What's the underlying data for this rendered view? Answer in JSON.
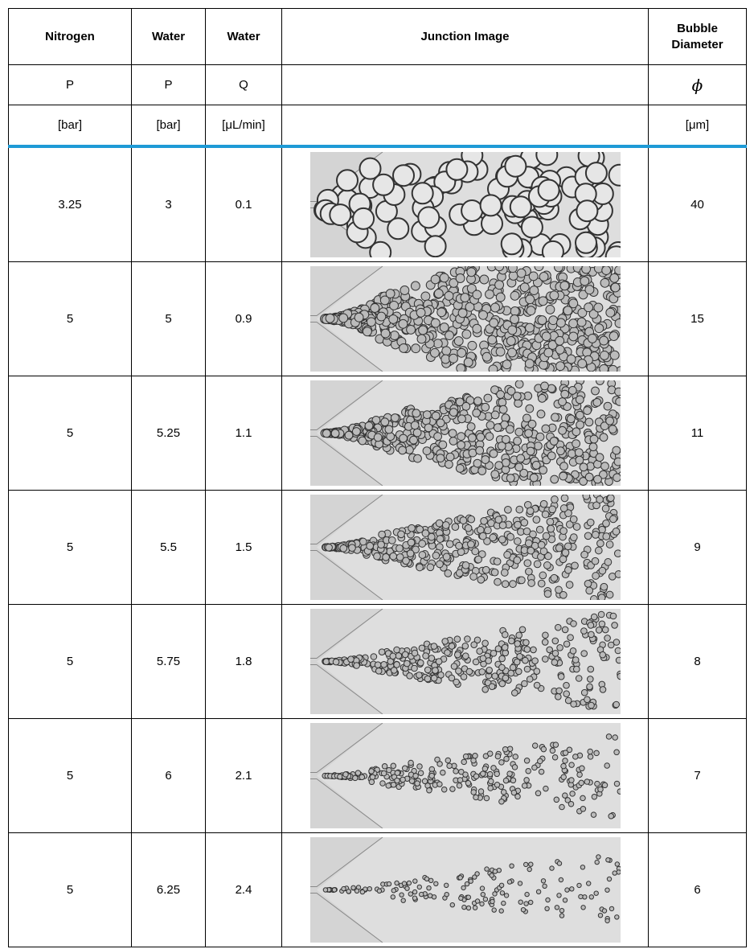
{
  "table": {
    "header": [
      [
        "Nitrogen",
        "Water",
        "Water",
        "Junction Image",
        "Bubble Diameter"
      ],
      [
        "P",
        "P",
        "Q",
        "",
        "ϕ"
      ],
      [
        "[bar]",
        "[bar]",
        "[μL/min]",
        "",
        "[μm]"
      ]
    ],
    "rows": [
      [
        3.25,
        3,
        0.1,
        40
      ],
      [
        5,
        5,
        0.9,
        15
      ],
      [
        5,
        5.25,
        1.1,
        11
      ],
      [
        5,
        5.5,
        1.5,
        9
      ],
      [
        5,
        5.75,
        1.8,
        8
      ],
      [
        5,
        6,
        2.1,
        7
      ],
      [
        5,
        6.25,
        2.4,
        6
      ]
    ]
  }
}
